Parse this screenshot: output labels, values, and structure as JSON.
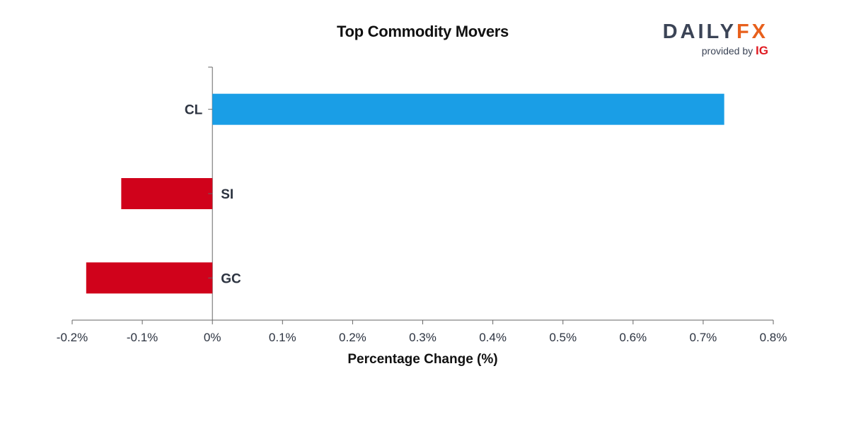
{
  "brand": {
    "name_part1": "DAILY",
    "name_part2": "FX",
    "provided_by": "provided by",
    "provider": "IG"
  },
  "colors": {
    "positive": "#1a9ee6",
    "negative": "#d0021b",
    "axis": "#666666",
    "text": "#2c3340"
  },
  "chart_data": {
    "type": "bar",
    "orientation": "horizontal",
    "title": "Top Commodity Movers",
    "xlabel": "Percentage Change (%)",
    "ylabel": "",
    "categories": [
      "CL",
      "SI",
      "GC"
    ],
    "values": [
      0.73,
      -0.13,
      -0.18
    ],
    "xlim": [
      -0.2,
      0.8
    ],
    "xticks": [
      -0.2,
      -0.1,
      0,
      0.1,
      0.2,
      0.3,
      0.4,
      0.5,
      0.6,
      0.7,
      0.8
    ],
    "xtick_labels": [
      "-0.2%",
      "-0.1%",
      "0%",
      "0.1%",
      "0.2%",
      "0.3%",
      "0.4%",
      "0.5%",
      "0.6%",
      "0.7%",
      "0.8%"
    ],
    "grid": false,
    "legend": "none"
  }
}
